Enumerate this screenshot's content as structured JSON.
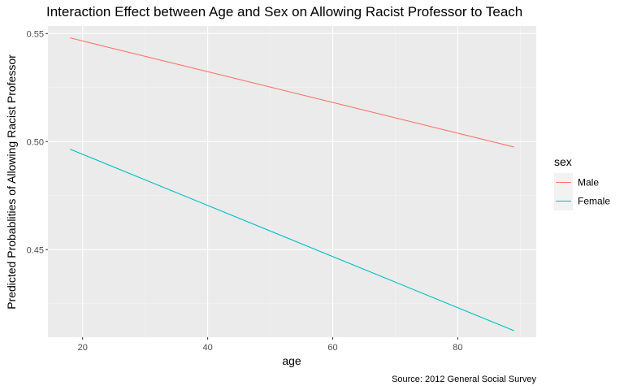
{
  "chart_data": {
    "type": "line",
    "title": "Interaction Effect between Age and Sex on Allowing Racist Professor to Teach",
    "xlabel": "age",
    "ylabel": "Predicted Probablities of Allowing Racist Professor",
    "caption": "Source: 2012 General Social Survey",
    "xlim": [
      14.45,
      92.55
    ],
    "ylim": [
      0.4095,
      0.5535
    ],
    "x_ticks": [
      20,
      40,
      60,
      80
    ],
    "x_tick_labels": [
      "20",
      "40",
      "60",
      "80"
    ],
    "y_ticks": [
      0.45,
      0.5,
      0.55
    ],
    "y_tick_labels": [
      "0.45",
      "0.50",
      "0.55"
    ],
    "grid": true,
    "legend": {
      "title": "sex",
      "position": "right"
    },
    "series": [
      {
        "name": "Male",
        "color": "#F8766D",
        "x": [
          18,
          89
        ],
        "values": [
          0.548,
          0.4975
        ]
      },
      {
        "name": "Female",
        "color": "#00BFC4",
        "x": [
          18,
          89
        ],
        "values": [
          0.4965,
          0.4125
        ]
      }
    ]
  }
}
